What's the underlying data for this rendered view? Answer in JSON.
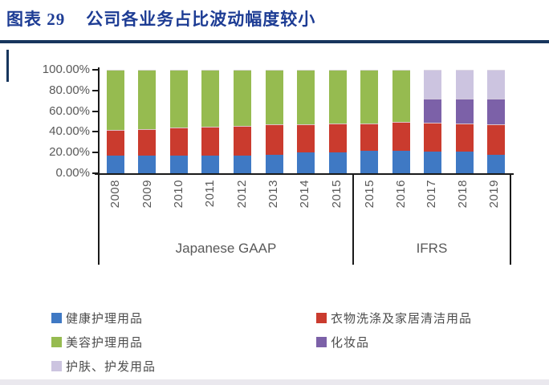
{
  "header": {
    "figure_label": "图表 29",
    "title": "公司各业务占比波动幅度较小"
  },
  "colors": {
    "title_navy": "#1d3c94",
    "rule_navy": "#17365d",
    "axis_black": "#1a1a1a",
    "label_grey": "#595959"
  },
  "chart_data": {
    "type": "bar",
    "subtype": "stacked-100-percent",
    "title": "公司各业务占比波动幅度较小",
    "ylim": [
      0,
      100
    ],
    "y_ticks": [
      "100.00%",
      "80.00%",
      "60.00%",
      "40.00%",
      "20.00%",
      "0.00%"
    ],
    "y_tick_values": [
      100,
      80,
      60,
      40,
      20,
      0
    ],
    "grid": "off",
    "legend_position": "bottom-left-two-columns",
    "categories": [
      "2008",
      "2009",
      "2010",
      "2011",
      "2012",
      "2013",
      "2014",
      "2015",
      "2015",
      "2016",
      "2017",
      "2018",
      "2019"
    ],
    "groups": [
      {
        "label": "Japanese GAAP",
        "span": 8
      },
      {
        "label": "IFRS",
        "span": 5
      }
    ],
    "series": [
      {
        "name": "健康护理用品",
        "color": "#3f79c4",
        "values": [
          17,
          17,
          17,
          17,
          17,
          18,
          20,
          20,
          22,
          22,
          21,
          21,
          18
        ]
      },
      {
        "name": "衣物洗涤及家居清洁用品",
        "color": "#ca3b2e",
        "values": [
          25,
          26,
          27,
          28,
          29,
          29,
          27,
          28,
          26,
          28,
          28,
          27,
          29
        ]
      },
      {
        "name": "美容护理用品",
        "color": "#96bb50",
        "values": [
          58,
          57,
          56,
          55,
          54,
          53,
          53,
          52,
          52,
          50,
          0,
          0,
          0
        ]
      },
      {
        "name": "化妆品",
        "color": "#7c61a8",
        "values": [
          0,
          0,
          0,
          0,
          0,
          0,
          0,
          0,
          0,
          0,
          23,
          24,
          25
        ]
      },
      {
        "name": "护肤、护发用品",
        "color": "#ccc4e0",
        "values": [
          0,
          0,
          0,
          0,
          0,
          0,
          0,
          0,
          0,
          0,
          28,
          28,
          28
        ]
      }
    ]
  }
}
